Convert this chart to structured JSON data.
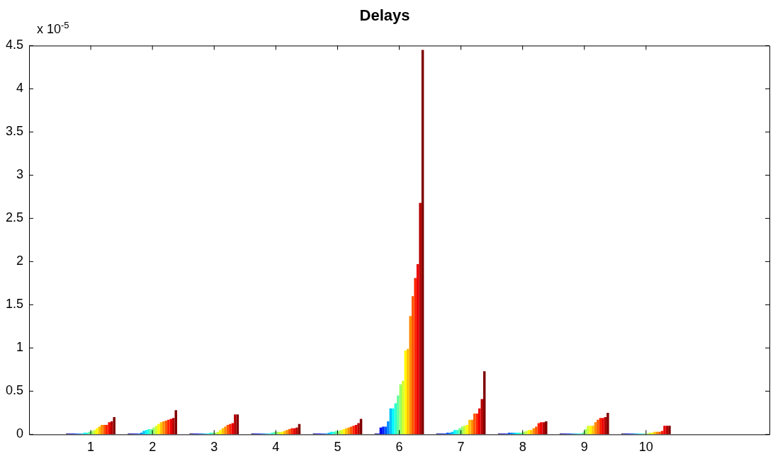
{
  "chart_data": {
    "type": "bar",
    "title": "Delays",
    "annotations": [
      "x 10$^{-5}$"
    ],
    "x": [
      1,
      2,
      3,
      4,
      5,
      6,
      7,
      8,
      9,
      10
    ],
    "xlim": [
      0,
      12
    ],
    "xticks": [
      1,
      2,
      3,
      4,
      5,
      6,
      7,
      8,
      9,
      10
    ],
    "ylim": [
      0,
      4.5
    ],
    "yticks": [
      0,
      0.5,
      1,
      1.5,
      2,
      2.5,
      3,
      3.5,
      4,
      4.5
    ],
    "grid": false,
    "legend": false,
    "series": [
      {
        "color": "#000080",
        "values": [
          0.01,
          0.01,
          0.01,
          0.01,
          0.01,
          0.01,
          0.01,
          0.01,
          0.01,
          0.01
        ]
      },
      {
        "color": "#0000b5",
        "values": [
          0.01,
          0.01,
          0.01,
          0.01,
          0.01,
          0.01,
          0.01,
          0.01,
          0.01,
          0.01
        ]
      },
      {
        "color": "#0000eb",
        "values": [
          0.01,
          0.01,
          0.01,
          0.01,
          0.01,
          0.08,
          0.01,
          0.01,
          0.01,
          0.01
        ]
      },
      {
        "color": "#0021ff",
        "values": [
          0.01,
          0.01,
          0.01,
          0.01,
          0.01,
          0.09,
          0.01,
          0.01,
          0.01,
          0.01
        ]
      },
      {
        "color": "#0057ff",
        "values": [
          0.01,
          0.01,
          0.01,
          0.01,
          0.01,
          0.09,
          0.02,
          0.02,
          0.01,
          0.01
        ]
      },
      {
        "color": "#008cff",
        "values": [
          0.01,
          0.02,
          0.01,
          0.01,
          0.01,
          0.15,
          0.02,
          0.02,
          0.01,
          0.01
        ]
      },
      {
        "color": "#00c2ff",
        "values": [
          0.01,
          0.04,
          0.01,
          0.01,
          0.02,
          0.3,
          0.03,
          0.02,
          0.01,
          0.01
        ]
      },
      {
        "color": "#00f8ff",
        "values": [
          0.02,
          0.05,
          0.01,
          0.01,
          0.03,
          0.3,
          0.05,
          0.02,
          0.01,
          0.01
        ]
      },
      {
        "color": "#2effd1",
        "values": [
          0.02,
          0.06,
          0.02,
          0.02,
          0.03,
          0.36,
          0.05,
          0.02,
          0.01,
          0.01
        ]
      },
      {
        "color": "#63ff9c",
        "values": [
          0.03,
          0.06,
          0.02,
          0.03,
          0.04,
          0.45,
          0.07,
          0.02,
          0.02,
          0.01
        ]
      },
      {
        "color": "#99ff66",
        "values": [
          0.04,
          0.08,
          0.02,
          0.03,
          0.04,
          0.58,
          0.09,
          0.03,
          0.06,
          0.01
        ]
      },
      {
        "color": "#d1ff2e",
        "values": [
          0.05,
          0.1,
          0.03,
          0.03,
          0.05,
          0.62,
          0.1,
          0.04,
          0.1,
          0.02
        ]
      },
      {
        "color": "#fff800",
        "values": [
          0.07,
          0.12,
          0.05,
          0.03,
          0.06,
          0.97,
          0.11,
          0.05,
          0.1,
          0.02
        ]
      },
      {
        "color": "#ffc200",
        "values": [
          0.09,
          0.14,
          0.07,
          0.04,
          0.07,
          0.99,
          0.17,
          0.05,
          0.1,
          0.03
        ]
      },
      {
        "color": "#ff8c00",
        "values": [
          0.11,
          0.15,
          0.09,
          0.05,
          0.08,
          1.37,
          0.17,
          0.07,
          0.14,
          0.03
        ]
      },
      {
        "color": "#ff5700",
        "values": [
          0.11,
          0.16,
          0.11,
          0.06,
          0.09,
          1.6,
          0.24,
          0.09,
          0.17,
          0.03
        ]
      },
      {
        "color": "#ff2100",
        "values": [
          0.11,
          0.17,
          0.12,
          0.07,
          0.1,
          1.81,
          0.24,
          0.13,
          0.19,
          0.04
        ]
      },
      {
        "color": "#eb0000",
        "values": [
          0.14,
          0.18,
          0.13,
          0.07,
          0.11,
          1.97,
          0.3,
          0.14,
          0.19,
          0.1
        ]
      },
      {
        "color": "#b50000",
        "values": [
          0.15,
          0.19,
          0.23,
          0.08,
          0.13,
          2.68,
          0.41,
          0.14,
          0.2,
          0.1
        ]
      },
      {
        "color": "#800000",
        "values": [
          0.2,
          0.28,
          0.23,
          0.12,
          0.18,
          4.45,
          0.73,
          0.15,
          0.25,
          0.1
        ]
      }
    ]
  }
}
